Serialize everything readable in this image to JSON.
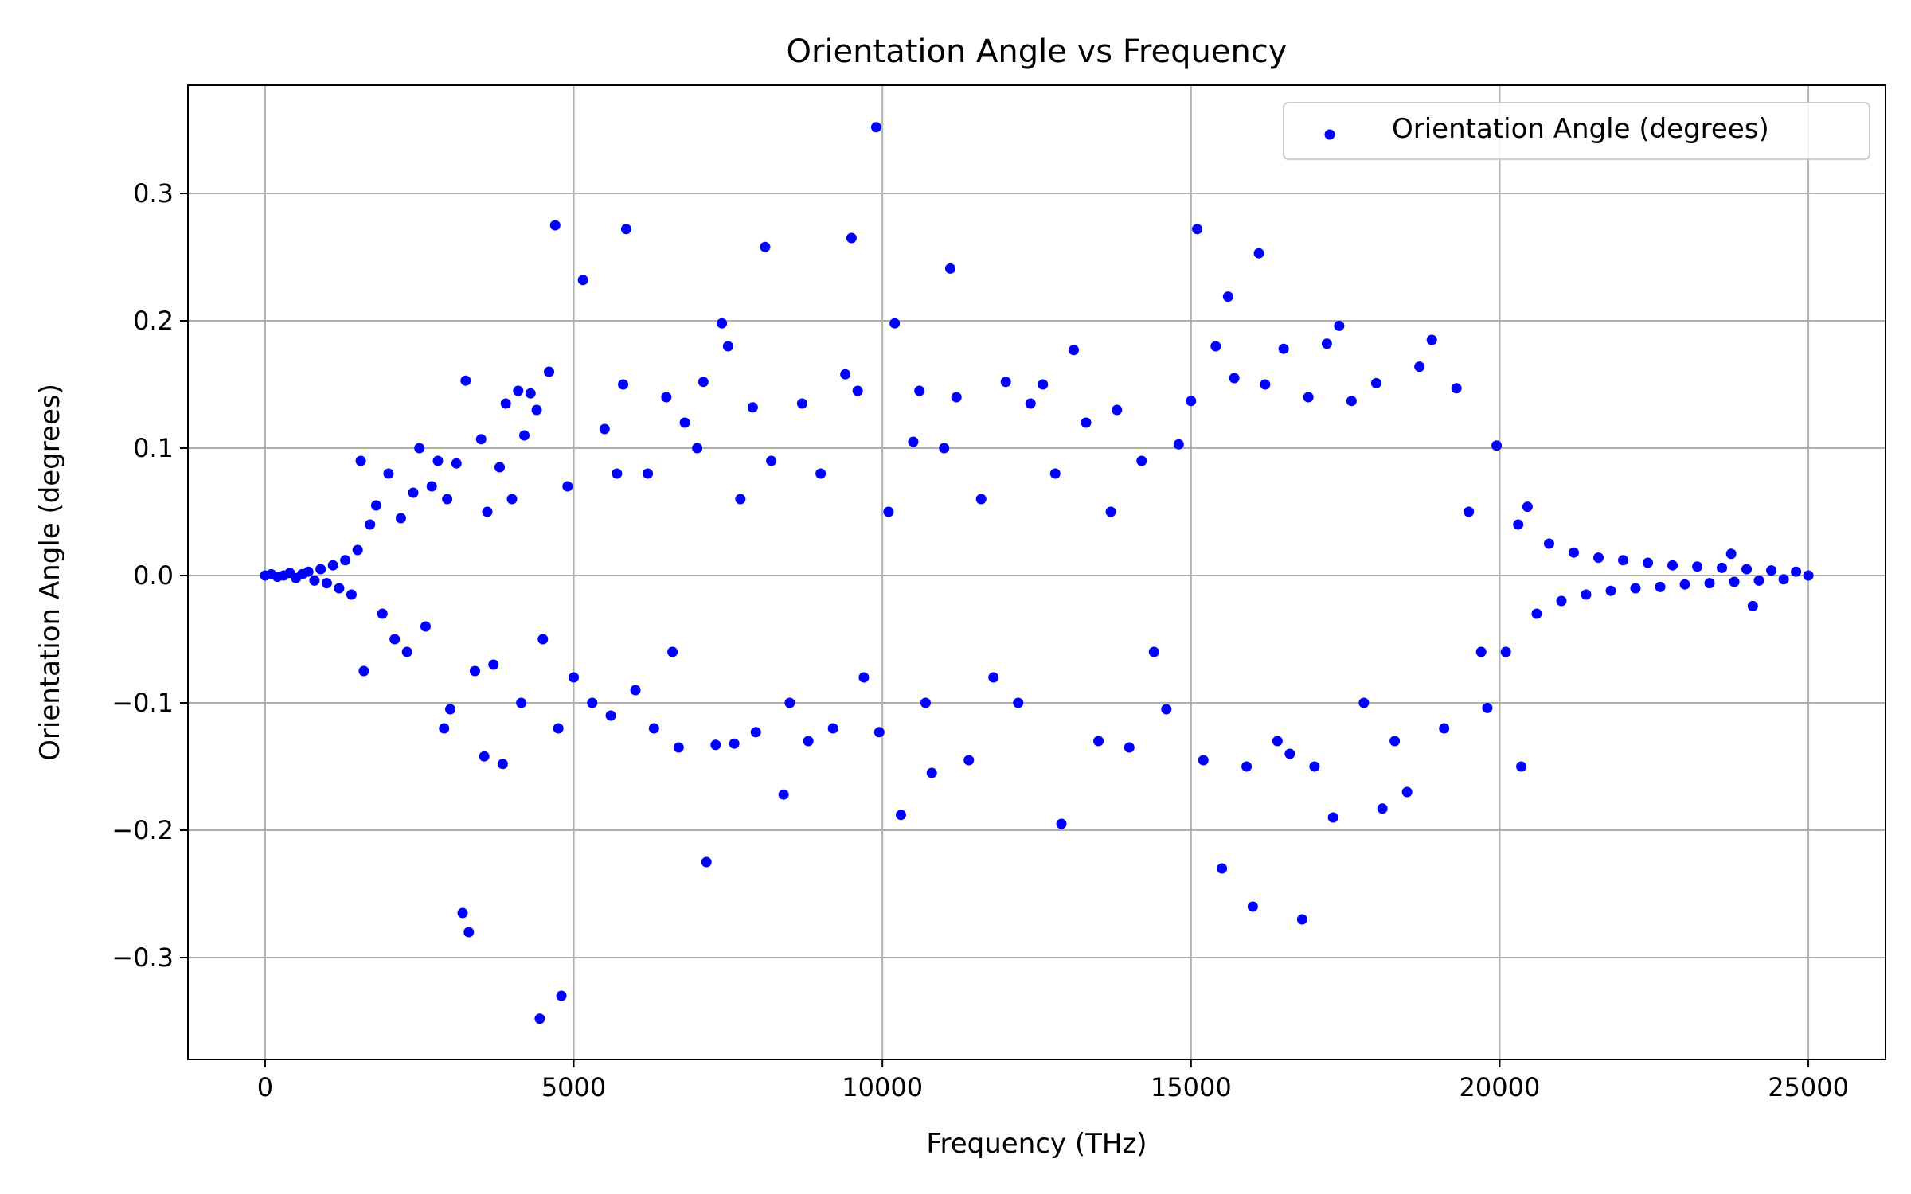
{
  "chart_data": {
    "type": "scatter",
    "title": "Orientation Angle vs Frequency",
    "xlabel": "Frequency (THz)",
    "ylabel": "Orientation Angle (degrees)",
    "xlim": [
      -1250,
      26250
    ],
    "ylim": [
      -0.38,
      0.385
    ],
    "xticks": [
      0,
      5000,
      10000,
      15000,
      20000,
      25000
    ],
    "xtick_labels": [
      "0",
      "5000",
      "10000",
      "15000",
      "20000",
      "25000"
    ],
    "yticks": [
      -0.3,
      -0.2,
      -0.1,
      0.0,
      0.1,
      0.2,
      0.3
    ],
    "ytick_labels": [
      "−0.3",
      "−0.2",
      "−0.1",
      "0.0",
      "0.1",
      "0.2",
      "0.3"
    ],
    "grid": true,
    "legend_position": "top-right",
    "series": [
      {
        "name": "Orientation Angle (degrees)",
        "color": "#0000ff",
        "marker": "circle",
        "points": [
          [
            0,
            0.0
          ],
          [
            100,
            0.001
          ],
          [
            200,
            -0.001
          ],
          [
            300,
            0.0
          ],
          [
            400,
            0.002
          ],
          [
            500,
            -0.002
          ],
          [
            600,
            0.001
          ],
          [
            700,
            0.003
          ],
          [
            800,
            -0.004
          ],
          [
            900,
            0.005
          ],
          [
            1000,
            -0.006
          ],
          [
            1100,
            0.008
          ],
          [
            1200,
            -0.01
          ],
          [
            1300,
            0.012
          ],
          [
            1400,
            -0.015
          ],
          [
            1500,
            0.02
          ],
          [
            1550,
            0.09
          ],
          [
            1600,
            -0.075
          ],
          [
            1700,
            0.04
          ],
          [
            1800,
            0.055
          ],
          [
            1900,
            -0.03
          ],
          [
            2000,
            0.08
          ],
          [
            2100,
            -0.05
          ],
          [
            2200,
            0.045
          ],
          [
            2300,
            -0.06
          ],
          [
            2400,
            0.065
          ],
          [
            2500,
            0.1
          ],
          [
            2600,
            -0.04
          ],
          [
            2700,
            0.07
          ],
          [
            2800,
            0.09
          ],
          [
            2900,
            -0.12
          ],
          [
            2950,
            0.06
          ],
          [
            3000,
            -0.105
          ],
          [
            3100,
            0.088
          ],
          [
            3200,
            -0.265
          ],
          [
            3250,
            0.153
          ],
          [
            3300,
            -0.28
          ],
          [
            3400,
            -0.075
          ],
          [
            3500,
            0.107
          ],
          [
            3550,
            -0.142
          ],
          [
            3600,
            0.05
          ],
          [
            3700,
            -0.07
          ],
          [
            3800,
            0.085
          ],
          [
            3850,
            -0.148
          ],
          [
            3900,
            0.135
          ],
          [
            4000,
            0.06
          ],
          [
            4100,
            0.145
          ],
          [
            4150,
            -0.1
          ],
          [
            4200,
            0.11
          ],
          [
            4300,
            0.143
          ],
          [
            4400,
            0.13
          ],
          [
            4450,
            -0.348
          ],
          [
            4500,
            -0.05
          ],
          [
            4600,
            0.16
          ],
          [
            4700,
            0.275
          ],
          [
            4750,
            -0.12
          ],
          [
            4800,
            -0.33
          ],
          [
            4900,
            0.07
          ],
          [
            5000,
            -0.08
          ],
          [
            5150,
            0.232
          ],
          [
            5300,
            -0.1
          ],
          [
            5500,
            0.115
          ],
          [
            5600,
            -0.11
          ],
          [
            5700,
            0.08
          ],
          [
            5800,
            0.15
          ],
          [
            5850,
            0.272
          ],
          [
            6000,
            -0.09
          ],
          [
            6200,
            0.08
          ],
          [
            6300,
            -0.12
          ],
          [
            6500,
            0.14
          ],
          [
            6600,
            -0.06
          ],
          [
            6700,
            -0.135
          ],
          [
            6800,
            0.12
          ],
          [
            7000,
            0.1
          ],
          [
            7100,
            0.152
          ],
          [
            7150,
            -0.225
          ],
          [
            7300,
            -0.133
          ],
          [
            7400,
            0.198
          ],
          [
            7500,
            0.18
          ],
          [
            7600,
            -0.132
          ],
          [
            7700,
            0.06
          ],
          [
            7900,
            0.132
          ],
          [
            7950,
            -0.123
          ],
          [
            8100,
            0.258
          ],
          [
            8200,
            0.09
          ],
          [
            8400,
            -0.172
          ],
          [
            8500,
            -0.1
          ],
          [
            8700,
            0.135
          ],
          [
            8800,
            -0.13
          ],
          [
            9000,
            0.08
          ],
          [
            9200,
            -0.12
          ],
          [
            9400,
            0.158
          ],
          [
            9500,
            0.265
          ],
          [
            9600,
            0.145
          ],
          [
            9700,
            -0.08
          ],
          [
            9900,
            0.352
          ],
          [
            9950,
            -0.123
          ],
          [
            10100,
            0.05
          ],
          [
            10200,
            0.198
          ],
          [
            10300,
            -0.188
          ],
          [
            10500,
            0.105
          ],
          [
            10600,
            0.145
          ],
          [
            10700,
            -0.1
          ],
          [
            10800,
            -0.155
          ],
          [
            11000,
            0.1
          ],
          [
            11100,
            0.241
          ],
          [
            11200,
            0.14
          ],
          [
            11400,
            -0.145
          ],
          [
            11600,
            0.06
          ],
          [
            11800,
            -0.08
          ],
          [
            12000,
            0.152
          ],
          [
            12200,
            -0.1
          ],
          [
            12400,
            0.135
          ],
          [
            12600,
            0.15
          ],
          [
            12800,
            0.08
          ],
          [
            12900,
            -0.195
          ],
          [
            13100,
            0.177
          ],
          [
            13300,
            0.12
          ],
          [
            13500,
            -0.13
          ],
          [
            13700,
            0.05
          ],
          [
            13800,
            0.13
          ],
          [
            14000,
            -0.135
          ],
          [
            14200,
            0.09
          ],
          [
            14400,
            -0.06
          ],
          [
            14600,
            -0.105
          ],
          [
            14800,
            0.103
          ],
          [
            15000,
            0.137
          ],
          [
            15100,
            0.272
          ],
          [
            15200,
            -0.145
          ],
          [
            15400,
            0.18
          ],
          [
            15500,
            -0.23
          ],
          [
            15600,
            0.219
          ],
          [
            15700,
            0.155
          ],
          [
            15900,
            -0.15
          ],
          [
            16000,
            -0.26
          ],
          [
            16100,
            0.253
          ],
          [
            16200,
            0.15
          ],
          [
            16400,
            -0.13
          ],
          [
            16500,
            0.178
          ],
          [
            16600,
            -0.14
          ],
          [
            16800,
            -0.27
          ],
          [
            16900,
            0.14
          ],
          [
            17000,
            -0.15
          ],
          [
            17200,
            0.182
          ],
          [
            17300,
            -0.19
          ],
          [
            17400,
            0.196
          ],
          [
            17600,
            0.137
          ],
          [
            17800,
            -0.1
          ],
          [
            18000,
            0.151
          ],
          [
            18100,
            -0.183
          ],
          [
            18300,
            -0.13
          ],
          [
            18500,
            -0.17
          ],
          [
            18700,
            0.164
          ],
          [
            18900,
            0.185
          ],
          [
            19100,
            -0.12
          ],
          [
            19300,
            0.147
          ],
          [
            19500,
            0.05
          ],
          [
            19700,
            -0.06
          ],
          [
            19800,
            -0.104
          ],
          [
            19950,
            0.102
          ],
          [
            20100,
            -0.06
          ],
          [
            20300,
            0.04
          ],
          [
            20350,
            -0.15
          ],
          [
            20450,
            0.054
          ],
          [
            20600,
            -0.03
          ],
          [
            20800,
            0.025
          ],
          [
            21000,
            -0.02
          ],
          [
            21200,
            0.018
          ],
          [
            21400,
            -0.015
          ],
          [
            21600,
            0.014
          ],
          [
            21800,
            -0.012
          ],
          [
            22000,
            0.012
          ],
          [
            22200,
            -0.01
          ],
          [
            22400,
            0.01
          ],
          [
            22600,
            -0.009
          ],
          [
            22800,
            0.008
          ],
          [
            23000,
            -0.007
          ],
          [
            23200,
            0.007
          ],
          [
            23400,
            -0.006
          ],
          [
            23600,
            0.006
          ],
          [
            23750,
            0.017
          ],
          [
            23800,
            -0.005
          ],
          [
            24000,
            0.005
          ],
          [
            24100,
            -0.024
          ],
          [
            24200,
            -0.004
          ],
          [
            24400,
            0.004
          ],
          [
            24600,
            -0.003
          ],
          [
            24800,
            0.003
          ],
          [
            25000,
            0.0
          ]
        ]
      }
    ]
  }
}
